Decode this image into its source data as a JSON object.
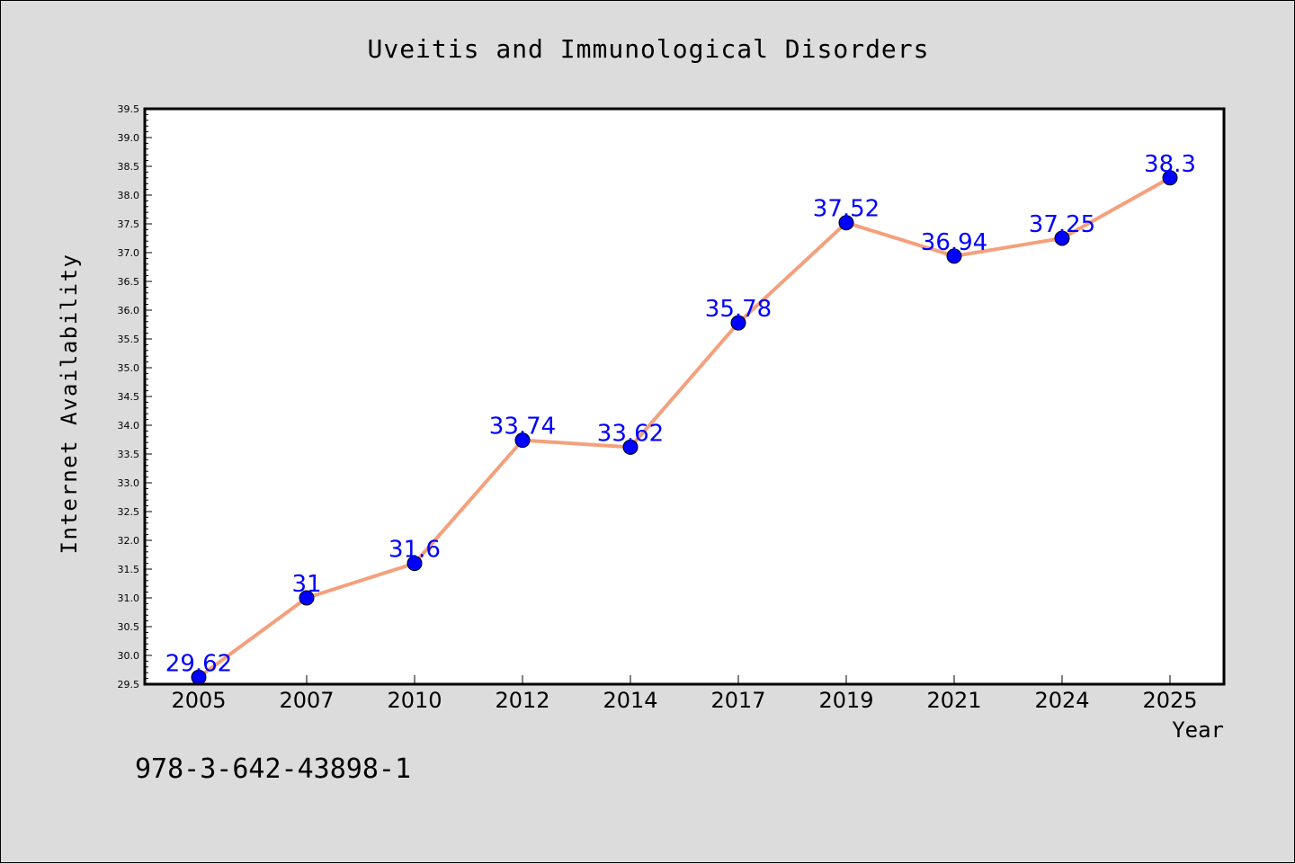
{
  "chart_data": {
    "type": "line",
    "title": "Uveitis and Immunological Disorders",
    "xlabel": "Year",
    "ylabel": "Internet Availability",
    "categories": [
      "2005",
      "2007",
      "2010",
      "2012",
      "2014",
      "2017",
      "2019",
      "2021",
      "2024",
      "2025"
    ],
    "series": [
      {
        "values": [
          29.62,
          31,
          31.6,
          33.74,
          33.62,
          35.78,
          37.52,
          36.94,
          37.25,
          38.3
        ],
        "labels": [
          "29.62",
          "31",
          "31.6",
          "33.74",
          "33.62",
          "35.78",
          "37.52",
          "36.94",
          "37.25",
          "38.3"
        ],
        "line_color": "#f4a07c",
        "marker_color": "#0000ff",
        "label_color": "#0000ff"
      }
    ],
    "ylim": [
      29.5,
      39.5
    ],
    "yticks": [
      "29.5",
      "30.0",
      "30.5",
      "31.0",
      "31.5",
      "32.0",
      "32.5",
      "33.0",
      "33.5",
      "34.0",
      "34.5",
      "35.0",
      "35.5",
      "36.0",
      "36.5",
      "37.0",
      "37.5",
      "38.0",
      "38.5",
      "39.0",
      "39.5"
    ],
    "grid": false,
    "legend": "none",
    "annotation": "978-3-642-43898-1"
  }
}
